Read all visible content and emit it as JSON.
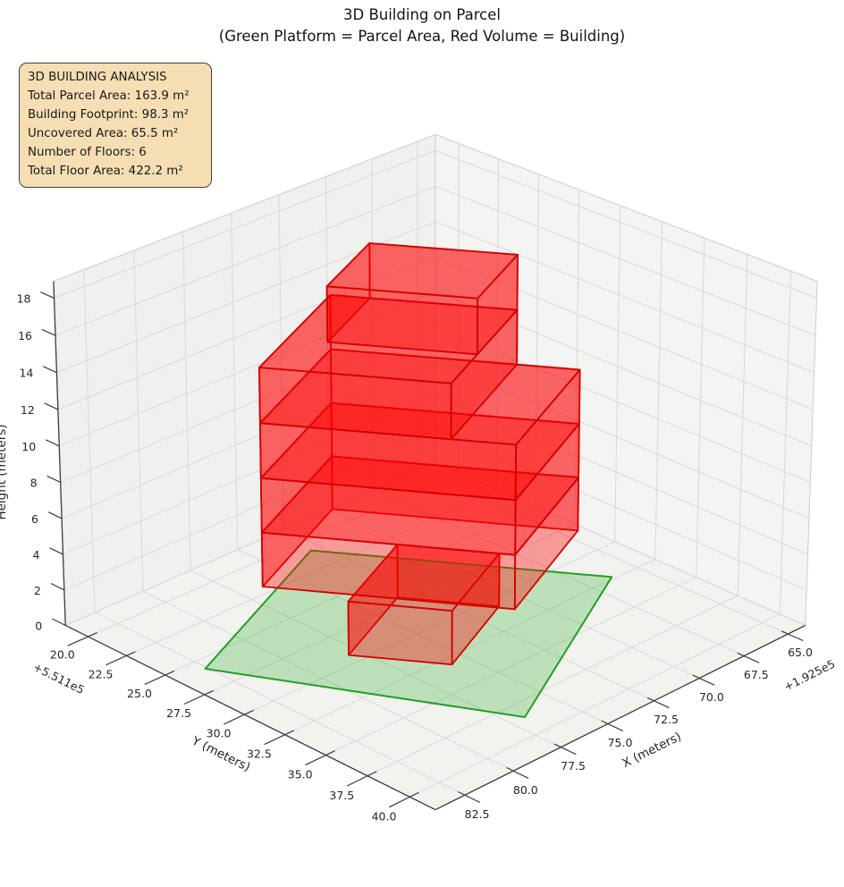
{
  "title": {
    "line1": "3D Building on Parcel",
    "line2": "(Green Platform = Parcel Area, Red Volume = Building)"
  },
  "info_box": {
    "title": "3D BUILDING ANALYSIS",
    "lines": [
      "Total Parcel Area: 163.9 m²",
      "Building Footprint: 98.3 m²",
      "Uncovered Area: 65.5 m²",
      "Number of Floors: 6",
      "Total Floor Area: 422.2 m²"
    ]
  },
  "chart_data": {
    "type": "3d-building-plot",
    "title": "3D Building on Parcel",
    "subtitle": "(Green Platform = Parcel Area, Red Volume = Building)",
    "legend_note": "Green Platform = Parcel Area, Red Volume = Building",
    "axes": {
      "x": {
        "label": "X (meters)",
        "offset_text": "+1.925e5",
        "ticks": [
          65.0,
          67.5,
          70.0,
          72.5,
          75.0,
          77.5,
          80.0,
          82.5
        ],
        "tick_labels": [
          "65.0",
          "67.5",
          "70.0",
          "72.5",
          "75.0",
          "77.5",
          "80.0",
          "82.5"
        ],
        "lim": [
          64.0,
          84.0
        ]
      },
      "y": {
        "label": "Y (meters)",
        "offset_text": "+5.511e5",
        "ticks": [
          20.0,
          22.5,
          25.0,
          27.5,
          30.0,
          32.5,
          35.0,
          37.5,
          40.0
        ],
        "tick_labels": [
          "20.0",
          "22.5",
          "25.0",
          "27.5",
          "30.0",
          "32.5",
          "35.0",
          "37.5",
          "40.0"
        ],
        "lim": [
          18.5,
          41.5
        ]
      },
      "z": {
        "label": "Height (meters)",
        "ticks": [
          0,
          2,
          4,
          6,
          8,
          10,
          12,
          14,
          16,
          18
        ],
        "tick_labels": [
          "0",
          "2",
          "4",
          "6",
          "8",
          "10",
          "12",
          "14",
          "16",
          "18"
        ],
        "lim": [
          0,
          18.9
        ]
      },
      "grid": true
    },
    "parcel": {
      "z": 0,
      "polygon_xy": [
        [
          73.0,
          20.9
        ],
        [
          66.3,
          32.3
        ],
        [
          76.8,
          38.6
        ],
        [
          82.6,
          25.8
        ]
      ],
      "fill": "#00a000",
      "fill_opacity": 0.22,
      "edge": "#22a022",
      "edge_width": 2
    },
    "building": {
      "fill": "#ff0000",
      "fill_opacity": 0.36,
      "edge": "#d40000",
      "edge_width": 1.8,
      "floor_height_m": 3,
      "n_floors": 6,
      "floors": [
        {
          "z0": 0,
          "z1": 3,
          "footprint": [
            [
              73.39,
              26.93
            ],
            [
              71.16,
              30.72
            ],
            [
              75.79,
              33.08
            ],
            [
              78.02,
              29.29
            ]
          ]
        },
        {
          "z0": 3,
          "z1": 6,
          "footprint": [
            [
              73.05,
              22.38
            ],
            [
              67.63,
              31.62
            ],
            [
              74.04,
              34.89
            ],
            [
              79.46,
              25.65
            ]
          ]
        },
        {
          "z0": 6,
          "z1": 9,
          "footprint": [
            [
              73.05,
              22.38
            ],
            [
              67.63,
              31.62
            ],
            [
              74.04,
              34.89
            ],
            [
              79.46,
              25.65
            ]
          ]
        },
        {
          "z0": 9,
          "z1": 12,
          "footprint": [
            [
              73.05,
              22.38
            ],
            [
              67.63,
              31.62
            ],
            [
              74.04,
              34.89
            ],
            [
              79.46,
              25.65
            ]
          ]
        },
        {
          "z0": 12,
          "z1": 15,
          "footprint": [
            [
              73.05,
              22.38
            ],
            [
              68.99,
              29.29
            ],
            [
              75.4,
              32.56
            ],
            [
              79.46,
              25.65
            ]
          ]
        },
        {
          "z0": 15,
          "z1": 18,
          "footprint": [
            [
              72.19,
              23.85
            ],
            [
              68.99,
              29.29
            ],
            [
              72.91,
              31.29
            ],
            [
              76.11,
              25.85
            ]
          ]
        }
      ]
    },
    "style": {
      "pane_floor": "#f2f2ef",
      "pane_left": "#f0f0ee",
      "pane_right": "#f4f4f2",
      "pane_edge": "#cccccc",
      "grid_color": "#d8d8d8",
      "spine_color": "#3c3c3c",
      "tick_text_color": "#262626"
    }
  }
}
